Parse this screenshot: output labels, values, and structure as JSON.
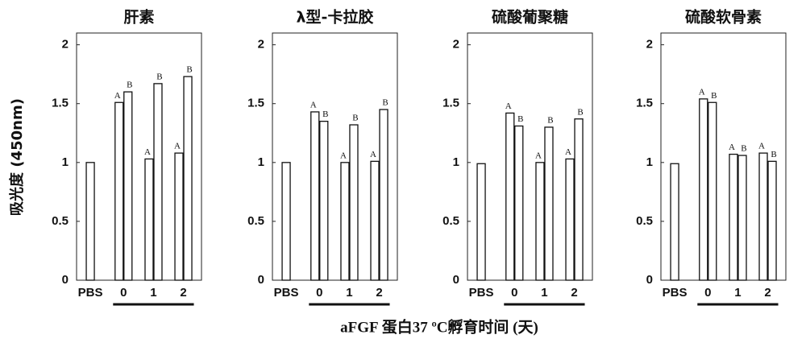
{
  "figure": {
    "ylabel": "吸光度 (450nm)",
    "xlabel": "aFGF 蛋白37 ºC孵育时间 (天)"
  },
  "chart_data": [
    {
      "type": "bar",
      "title": "肝素",
      "categories": [
        "PBS",
        "0",
        "1",
        "2"
      ],
      "series": [
        {
          "values": [
            1.0,
            1.51,
            1.03,
            1.08
          ],
          "letters": [
            null,
            "A",
            "A",
            "A"
          ]
        },
        {
          "values": [
            null,
            1.6,
            1.67,
            1.73
          ],
          "letters": [
            null,
            "B",
            "B",
            "B"
          ]
        }
      ],
      "ylim": [
        0,
        2.1
      ],
      "yticks": [
        0,
        0.5,
        1,
        1.5,
        2
      ]
    },
    {
      "type": "bar",
      "title": "λ型-卡拉胶",
      "categories": [
        "PBS",
        "0",
        "1",
        "2"
      ],
      "series": [
        {
          "values": [
            1.0,
            1.43,
            1.0,
            1.01
          ],
          "letters": [
            null,
            "A",
            "A",
            "A"
          ]
        },
        {
          "values": [
            null,
            1.35,
            1.32,
            1.45
          ],
          "letters": [
            null,
            "B",
            "B",
            "B"
          ]
        }
      ],
      "ylim": [
        0,
        2.1
      ],
      "yticks": [
        0,
        0.5,
        1,
        1.5,
        2
      ]
    },
    {
      "type": "bar",
      "title": "硫酸葡聚糖",
      "categories": [
        "PBS",
        "0",
        "1",
        "2"
      ],
      "series": [
        {
          "values": [
            0.99,
            1.42,
            1.0,
            1.03
          ],
          "letters": [
            null,
            "A",
            "A",
            "A"
          ]
        },
        {
          "values": [
            null,
            1.31,
            1.3,
            1.37
          ],
          "letters": [
            null,
            "B",
            "B",
            "B"
          ]
        }
      ],
      "ylim": [
        0,
        2.1
      ],
      "yticks": [
        0,
        0.5,
        1,
        1.5,
        2
      ]
    },
    {
      "type": "bar",
      "title": "硫酸软骨素",
      "categories": [
        "PBS",
        "0",
        "1",
        "2"
      ],
      "series": [
        {
          "values": [
            0.99,
            1.54,
            1.07,
            1.08
          ],
          "letters": [
            null,
            "A",
            "A",
            "A"
          ]
        },
        {
          "values": [
            null,
            1.51,
            1.06,
            1.01
          ],
          "letters": [
            null,
            "B",
            "B",
            "B"
          ]
        }
      ],
      "ylim": [
        0,
        2.1
      ],
      "yticks": [
        0,
        0.5,
        1,
        1.5,
        2
      ]
    }
  ]
}
